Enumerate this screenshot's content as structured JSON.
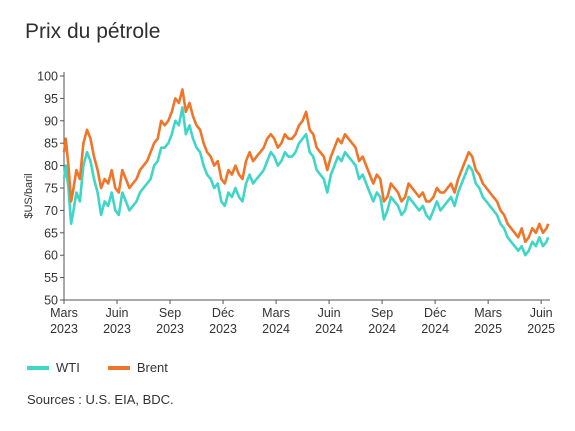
{
  "title": "Prix du pétrole",
  "source": "Sources : U.S. EIA, BDC.",
  "legend": {
    "wti": "WTI",
    "brent": "Brent"
  },
  "colors": {
    "wti": "#3fd6c8",
    "brent": "#f07528",
    "axis": "#555555"
  },
  "chart_data": {
    "type": "line",
    "title": "Prix du pétrole",
    "xlabel": "",
    "ylabel": "$US/baril",
    "ylim": [
      50,
      100
    ],
    "yticks": [
      50,
      55,
      60,
      65,
      70,
      75,
      80,
      85,
      90,
      95,
      100
    ],
    "xlim": [
      0,
      27.5
    ],
    "xticks": [
      {
        "x": 0,
        "label1": "Mars",
        "label2": "2023"
      },
      {
        "x": 3,
        "label1": "Juin",
        "label2": "2023"
      },
      {
        "x": 6,
        "label1": "Sep",
        "label2": "2023"
      },
      {
        "x": 9,
        "label1": "Déc",
        "label2": "2023"
      },
      {
        "x": 12,
        "label1": "Mars",
        "label2": "2024"
      },
      {
        "x": 15,
        "label1": "Juin",
        "label2": "2024"
      },
      {
        "x": 18,
        "label1": "Sep",
        "label2": "2024"
      },
      {
        "x": 21,
        "label1": "Déc",
        "label2": "2024"
      },
      {
        "x": 24,
        "label1": "Mars",
        "label2": "2025"
      },
      {
        "x": 27,
        "label1": "Juin",
        "label2": "2025"
      }
    ],
    "x_unit": "months since March 2023",
    "grid": false,
    "legend_position": "bottom-left",
    "series": [
      {
        "name": "WTI",
        "color": "#3fd6c8",
        "x": [
          0,
          0.1,
          0.25,
          0.4,
          0.5,
          0.7,
          0.9,
          1.1,
          1.3,
          1.5,
          1.7,
          1.9,
          2.1,
          2.3,
          2.5,
          2.7,
          2.9,
          3.1,
          3.3,
          3.5,
          3.7,
          3.9,
          4.1,
          4.3,
          4.5,
          4.7,
          4.9,
          5.1,
          5.3,
          5.5,
          5.7,
          5.9,
          6.1,
          6.3,
          6.5,
          6.7,
          6.9,
          7.1,
          7.3,
          7.5,
          7.7,
          7.9,
          8.1,
          8.3,
          8.5,
          8.7,
          8.9,
          9.1,
          9.3,
          9.5,
          9.7,
          9.9,
          10.1,
          10.3,
          10.5,
          10.7,
          10.9,
          11.1,
          11.3,
          11.5,
          11.7,
          11.9,
          12.1,
          12.3,
          12.5,
          12.7,
          12.9,
          13.1,
          13.3,
          13.5,
          13.7,
          13.9,
          14.1,
          14.3,
          14.5,
          14.7,
          14.9,
          15.1,
          15.3,
          15.5,
          15.7,
          15.9,
          16.1,
          16.3,
          16.5,
          16.7,
          16.9,
          17.1,
          17.3,
          17.5,
          17.7,
          17.9,
          18.1,
          18.3,
          18.5,
          18.7,
          18.9,
          19.1,
          19.3,
          19.5,
          19.7,
          19.9,
          20.1,
          20.3,
          20.5,
          20.7,
          20.9,
          21.1,
          21.3,
          21.5,
          21.7,
          21.9,
          22.1,
          22.3,
          22.5,
          22.7,
          22.9,
          23.1,
          23.3,
          23.5,
          23.7,
          23.9,
          24.1,
          24.3,
          24.5,
          24.7,
          24.9,
          25.1,
          25.3,
          25.5,
          25.7,
          25.9,
          26.1,
          26.3,
          26.5,
          26.7,
          26.9,
          27.1,
          27.3,
          27.4
        ],
        "values": [
          77,
          80,
          75,
          67,
          69,
          74,
          72,
          80,
          83,
          81,
          77,
          74,
          69,
          72,
          71,
          74,
          70,
          69,
          74,
          72,
          70,
          71,
          72,
          74,
          75,
          76,
          77,
          80,
          81,
          84,
          84,
          85,
          87,
          90,
          89,
          93,
          87,
          89,
          86,
          84,
          83,
          80,
          78,
          77,
          75,
          76,
          72,
          71,
          74,
          73,
          75,
          73,
          72,
          76,
          78,
          76,
          77,
          78,
          79,
          81,
          83,
          82,
          80,
          81,
          83,
          82,
          82,
          83,
          85,
          86,
          87,
          83,
          82,
          79,
          78,
          77,
          74,
          78,
          80,
          82,
          81,
          83,
          82,
          81,
          80,
          77,
          78,
          76,
          74,
          72,
          74,
          73,
          68,
          70,
          73,
          72,
          71,
          69,
          70,
          73,
          72,
          71,
          70,
          71,
          69,
          68,
          70,
          72,
          70,
          71,
          72,
          73,
          71,
          74,
          76,
          78,
          80,
          79,
          76,
          75,
          73,
          72,
          71,
          70,
          69,
          67,
          66,
          64,
          63,
          62,
          61,
          62,
          60,
          61,
          63,
          62,
          64,
          62,
          63,
          64
        ]
      },
      {
        "name": "Brent",
        "color": "#f07528",
        "x": [
          0,
          0.1,
          0.25,
          0.4,
          0.5,
          0.7,
          0.9,
          1.1,
          1.3,
          1.5,
          1.7,
          1.9,
          2.1,
          2.3,
          2.5,
          2.7,
          2.9,
          3.1,
          3.3,
          3.5,
          3.7,
          3.9,
          4.1,
          4.3,
          4.5,
          4.7,
          4.9,
          5.1,
          5.3,
          5.5,
          5.7,
          5.9,
          6.1,
          6.3,
          6.5,
          6.7,
          6.9,
          7.1,
          7.3,
          7.5,
          7.7,
          7.9,
          8.1,
          8.3,
          8.5,
          8.7,
          8.9,
          9.1,
          9.3,
          9.5,
          9.7,
          9.9,
          10.1,
          10.3,
          10.5,
          10.7,
          10.9,
          11.1,
          11.3,
          11.5,
          11.7,
          11.9,
          12.1,
          12.3,
          12.5,
          12.7,
          12.9,
          13.1,
          13.3,
          13.5,
          13.7,
          13.9,
          14.1,
          14.3,
          14.5,
          14.7,
          14.9,
          15.1,
          15.3,
          15.5,
          15.7,
          15.9,
          16.1,
          16.3,
          16.5,
          16.7,
          16.9,
          17.1,
          17.3,
          17.5,
          17.7,
          17.9,
          18.1,
          18.3,
          18.5,
          18.7,
          18.9,
          19.1,
          19.3,
          19.5,
          19.7,
          19.9,
          20.1,
          20.3,
          20.5,
          20.7,
          20.9,
          21.1,
          21.3,
          21.5,
          21.7,
          21.9,
          22.1,
          22.3,
          22.5,
          22.7,
          22.9,
          23.1,
          23.3,
          23.5,
          23.7,
          23.9,
          24.1,
          24.3,
          24.5,
          24.7,
          24.9,
          25.1,
          25.3,
          25.5,
          25.7,
          25.9,
          26.1,
          26.3,
          26.5,
          26.7,
          26.9,
          27.1,
          27.3,
          27.4
        ],
        "values": [
          83,
          86,
          80,
          72,
          74,
          79,
          77,
          85,
          88,
          86,
          82,
          79,
          75,
          77,
          76,
          79,
          75,
          74,
          79,
          77,
          75,
          76,
          77,
          79,
          80,
          81,
          83,
          85,
          86,
          90,
          89,
          90,
          92,
          95,
          94,
          97,
          92,
          94,
          91,
          89,
          88,
          85,
          83,
          82,
          80,
          81,
          77,
          76,
          79,
          78,
          80,
          78,
          77,
          81,
          83,
          81,
          82,
          83,
          84,
          86,
          87,
          86,
          84,
          85,
          87,
          86,
          86,
          87,
          89,
          90,
          92,
          88,
          87,
          84,
          83,
          82,
          79,
          82,
          84,
          86,
          85,
          87,
          86,
          85,
          84,
          81,
          82,
          80,
          78,
          76,
          78,
          77,
          72,
          73,
          76,
          75,
          74,
          72,
          73,
          76,
          75,
          74,
          73,
          74,
          72,
          72,
          73,
          75,
          74,
          74,
          75,
          76,
          74,
          77,
          79,
          81,
          83,
          82,
          79,
          78,
          76,
          75,
          74,
          73,
          72,
          70,
          69,
          67,
          66,
          65,
          64,
          66,
          63,
          64,
          66,
          65,
          67,
          65,
          66,
          67
        ]
      }
    ]
  }
}
